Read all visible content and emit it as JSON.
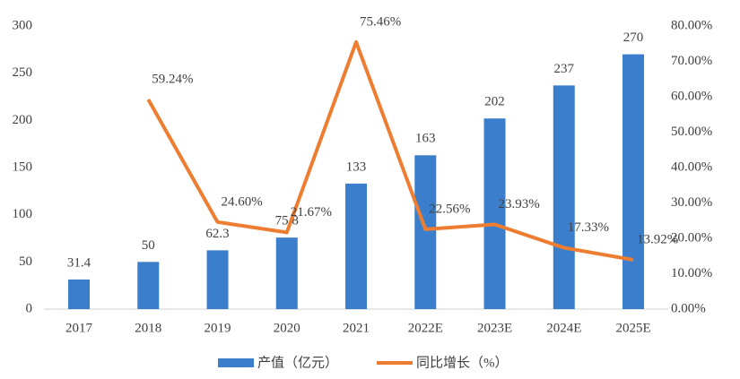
{
  "chart_data": {
    "type": "combo",
    "categories": [
      "2017",
      "2018",
      "2019",
      "2020",
      "2021",
      "2022E",
      "2023E",
      "2024E",
      "2025E"
    ],
    "series": [
      {
        "name": "产值（亿元）",
        "type": "bar",
        "color": "#3b7fcc",
        "values": [
          31.4,
          50,
          62.3,
          75.8,
          133,
          163,
          202,
          237,
          270
        ]
      },
      {
        "name": "同比增长（%）",
        "type": "line",
        "axis": "y2",
        "color": "#ed7d31",
        "values": [
          null,
          59.24,
          24.6,
          21.67,
          75.46,
          22.56,
          23.93,
          17.33,
          13.92
        ],
        "value_labels": [
          null,
          "59.24%",
          "24.60%",
          "21.67%",
          "75.46%",
          "22.56%",
          "23.93%",
          "17.33%",
          "13.92%"
        ]
      }
    ],
    "ylim": [
      0,
      300
    ],
    "yticks": [
      0,
      50,
      100,
      150,
      200,
      250,
      300
    ],
    "y2lim": [
      0,
      80
    ],
    "y2ticks": [
      {
        "value": 0,
        "label": "0.00%"
      },
      {
        "value": 10,
        "label": "10.00%"
      },
      {
        "value": 20,
        "label": "20.00%"
      },
      {
        "value": 30,
        "label": "30.00%"
      },
      {
        "value": 40,
        "label": "40.00%"
      },
      {
        "value": 50,
        "label": "50.00%"
      },
      {
        "value": 60,
        "label": "60.00%"
      },
      {
        "value": 70,
        "label": "70.00%"
      },
      {
        "value": 80,
        "label": "80.00%"
      }
    ],
    "grid": false,
    "legend": "bottom"
  }
}
